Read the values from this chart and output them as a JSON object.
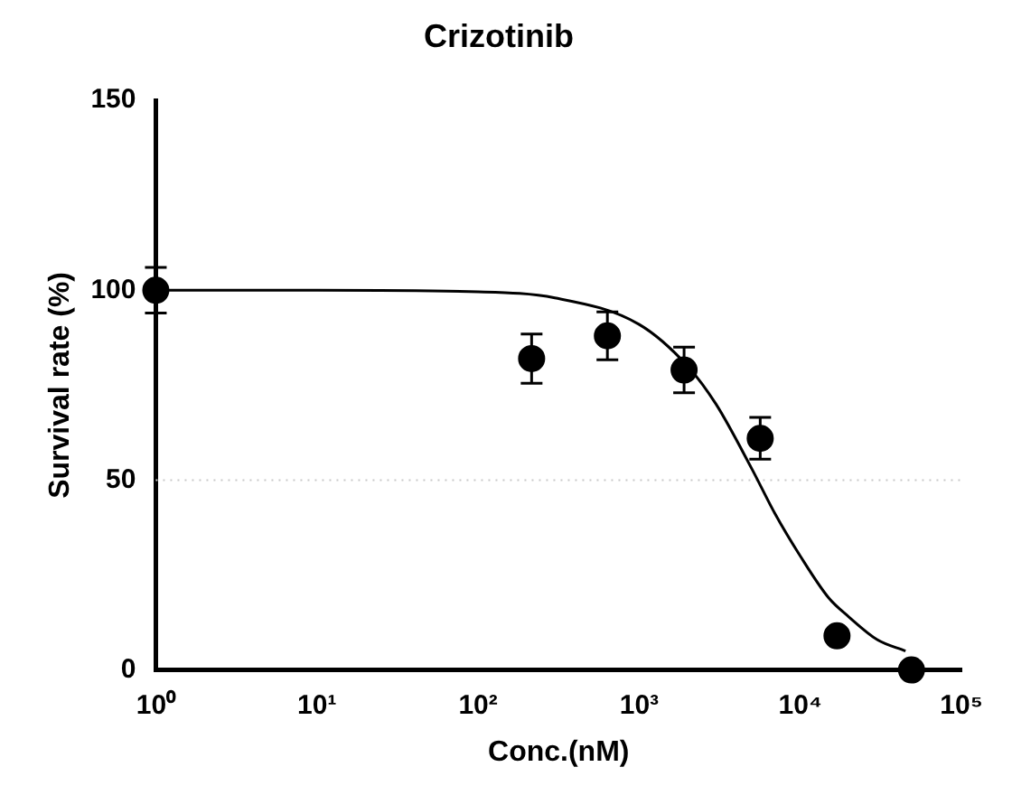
{
  "chart_data": {
    "type": "scatter",
    "title": "Crizotinib",
    "xlabel": "Conc.(nM)",
    "ylabel": "Survival rate (%)",
    "log": "x",
    "xlim": [
      1,
      100000
    ],
    "xticks": [
      {
        "value": 1,
        "label": "10⁰"
      },
      {
        "value": 10,
        "label": "10¹"
      },
      {
        "value": 100,
        "label": "10²"
      },
      {
        "value": 1000,
        "label": "10³"
      },
      {
        "value": 10000,
        "label": "10⁴"
      },
      {
        "value": 100000,
        "label": "10⁵"
      }
    ],
    "ylim": [
      0,
      150
    ],
    "yticks": [
      0,
      50,
      100,
      150
    ],
    "grid": false,
    "legend": false,
    "marker": "circle",
    "ref_lines": [
      {
        "axis": "y",
        "value": 50,
        "color": "#c8c8c8",
        "line_style": "dotted"
      }
    ],
    "series": [
      {
        "color": "#000000",
        "x": [
          1,
          215,
          635,
          1900,
          5640,
          16900,
          49000
        ],
        "values": [
          100,
          82,
          88,
          79,
          61,
          9,
          0
        ],
        "errors": [
          6,
          6.5,
          6.3,
          6,
          5.5,
          null,
          null
        ]
      },
      {
        "type": "line",
        "color": "#000000",
        "marker": "none",
        "line_style": "solid",
        "x": [
          1,
          10,
          100,
          300,
          1000,
          2000,
          3000,
          5000,
          7000,
          10000,
          15000,
          20000,
          30000,
          45000
        ],
        "values": [
          100,
          100,
          99.6,
          98,
          91,
          80,
          70,
          53,
          41,
          30,
          19,
          14,
          8,
          5
        ]
      }
    ]
  }
}
